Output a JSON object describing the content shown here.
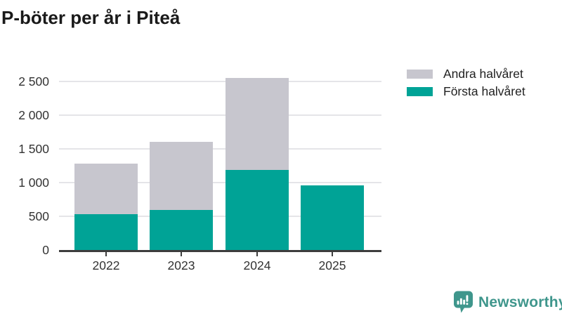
{
  "title": "P-böter per år i Piteå",
  "chart_data": {
    "type": "bar",
    "stacked": true,
    "title": "P-böter per år i Piteå",
    "categories": [
      "2022",
      "2023",
      "2024",
      "2025"
    ],
    "series": [
      {
        "name": "Första halvåret",
        "color": "#00a396",
        "values": [
          530,
          590,
          1190,
          960
        ]
      },
      {
        "name": "Andra halvåret",
        "color": "#c7c6ce",
        "values": [
          750,
          1010,
          1360,
          0
        ]
      }
    ],
    "totals": [
      1280,
      1600,
      2550,
      960
    ],
    "xlabel": "",
    "ylabel": "",
    "ylim": [
      0,
      2600
    ],
    "yticks": [
      0,
      500,
      1000,
      1500,
      2000,
      2500
    ],
    "ytick_labels": [
      "0",
      "500",
      "1 000",
      "1 500",
      "2 000",
      "2 500"
    ],
    "grid": "horizontal-only",
    "legend_position": "top-right",
    "legend": [
      {
        "label": "Andra halvåret",
        "color": "#c7c6ce"
      },
      {
        "label": "Första halvåret",
        "color": "#00a396"
      }
    ]
  },
  "colors": {
    "first_half": "#00a396",
    "second_half": "#c7c6ce",
    "gridline": "#e5e5e8",
    "axis": "#3d3d3d",
    "title_text": "#1a1a1a",
    "label_text": "#333333",
    "logo": "#3f968c"
  },
  "branding": {
    "logo_text": "Newsworthy",
    "logo_icon": "newsworthy-speech-bubble-bar-chart-icon"
  }
}
